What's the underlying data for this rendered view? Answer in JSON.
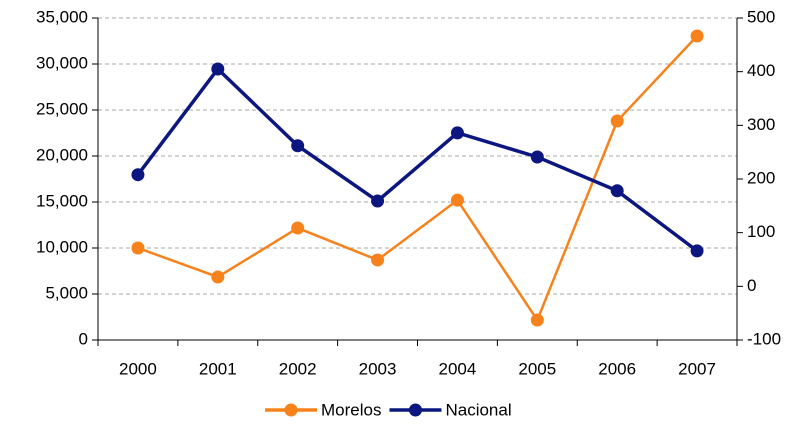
{
  "chart_data": {
    "type": "line",
    "categories": [
      "2000",
      "2001",
      "2002",
      "2003",
      "2004",
      "2005",
      "2006",
      "2007"
    ],
    "series": [
      {
        "name": "Morelos",
        "color": "#f7821b",
        "values": [
          10000,
          6850,
          12170,
          8700,
          15200,
          2170,
          23800,
          33040
        ]
      },
      {
        "name": "Nacional",
        "color": "#0c1680",
        "axis": "y2",
        "values": [
          208,
          405,
          262,
          159,
          286,
          241,
          178,
          66
        ]
      }
    ],
    "ylim": [
      0,
      35000
    ],
    "yticks": [
      0,
      {
        "value": 5000,
        "label": "5,000"
      },
      {
        "value": 10000,
        "label": "10,000"
      },
      {
        "value": 15000,
        "label": "15,000"
      },
      {
        "value": 20000,
        "label": "20,000"
      },
      {
        "value": 25000,
        "label": "25,000"
      },
      {
        "value": 30000,
        "label": "30,000"
      },
      {
        "value": 35000,
        "label": "35,000"
      }
    ],
    "y2lim": [
      -100,
      500
    ],
    "y2ticks": [
      -100,
      0,
      100,
      200,
      300,
      400,
      500
    ],
    "grid": true,
    "legend": "bottom"
  }
}
